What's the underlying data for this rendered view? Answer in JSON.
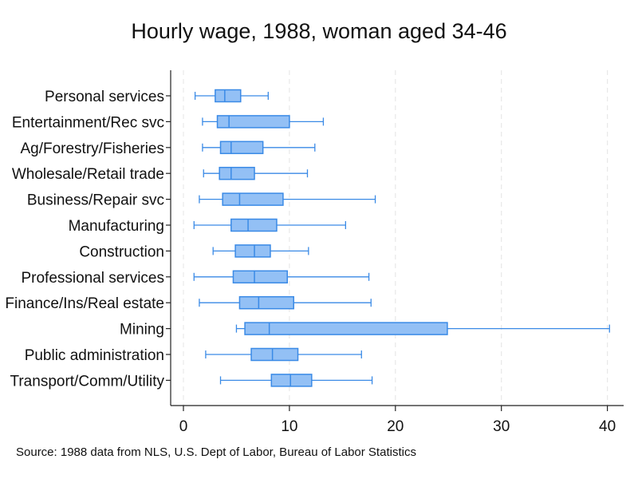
{
  "chart_data": {
    "type": "box",
    "orientation": "horizontal",
    "title": "Hourly wage, 1988, woman aged 34-46",
    "note": "Source: 1988 data from NLS, U.S. Dept of Labor, Bureau of Labor Statistics",
    "xlabel": "",
    "ylabel": "",
    "xlim": [
      0,
      41
    ],
    "xticks": [
      0,
      10,
      20,
      30,
      40
    ],
    "grid": "vertical dashed",
    "legend": "none",
    "categories": [
      "Personal services",
      "Entertainment/Rec svc",
      "Ag/Forestry/Fisheries",
      "Wholesale/Retail trade",
      "Business/Repair svc",
      "Manufacturing",
      "Construction",
      "Professional services",
      "Finance/Ins/Real estate",
      "Mining",
      "Public administration",
      "Transport/Comm/Utility"
    ],
    "boxes": [
      {
        "min": 1.1,
        "q1": 3.0,
        "median": 3.9,
        "q3": 5.4,
        "max": 8.0
      },
      {
        "min": 1.8,
        "q1": 3.2,
        "median": 4.3,
        "q3": 10.0,
        "max": 13.2
      },
      {
        "min": 1.8,
        "q1": 3.5,
        "median": 4.5,
        "q3": 7.5,
        "max": 12.4
      },
      {
        "min": 1.9,
        "q1": 3.4,
        "median": 4.5,
        "q3": 6.7,
        "max": 11.7
      },
      {
        "min": 1.5,
        "q1": 3.7,
        "median": 5.3,
        "q3": 9.4,
        "max": 18.1
      },
      {
        "min": 1.0,
        "q1": 4.5,
        "median": 6.1,
        "q3": 8.8,
        "max": 15.3
      },
      {
        "min": 2.8,
        "q1": 4.9,
        "median": 6.7,
        "q3": 8.2,
        "max": 11.8
      },
      {
        "min": 1.0,
        "q1": 4.7,
        "median": 6.7,
        "q3": 9.8,
        "max": 17.5
      },
      {
        "min": 1.5,
        "q1": 5.3,
        "median": 7.1,
        "q3": 10.4,
        "max": 17.7
      },
      {
        "min": 5.0,
        "q1": 5.8,
        "median": 8.1,
        "q3": 24.9,
        "max": 40.2
      },
      {
        "min": 2.1,
        "q1": 6.4,
        "median": 8.4,
        "q3": 10.8,
        "max": 16.8
      },
      {
        "min": 3.5,
        "q1": 8.3,
        "median": 10.1,
        "q3": 12.1,
        "max": 17.8
      }
    ],
    "colors": {
      "box_fill": "#93c0f5",
      "box_stroke": "#3a8ae6",
      "whisker": "#3a8ae6",
      "grid": "#e8e8e8",
      "axis": "#222222"
    }
  }
}
